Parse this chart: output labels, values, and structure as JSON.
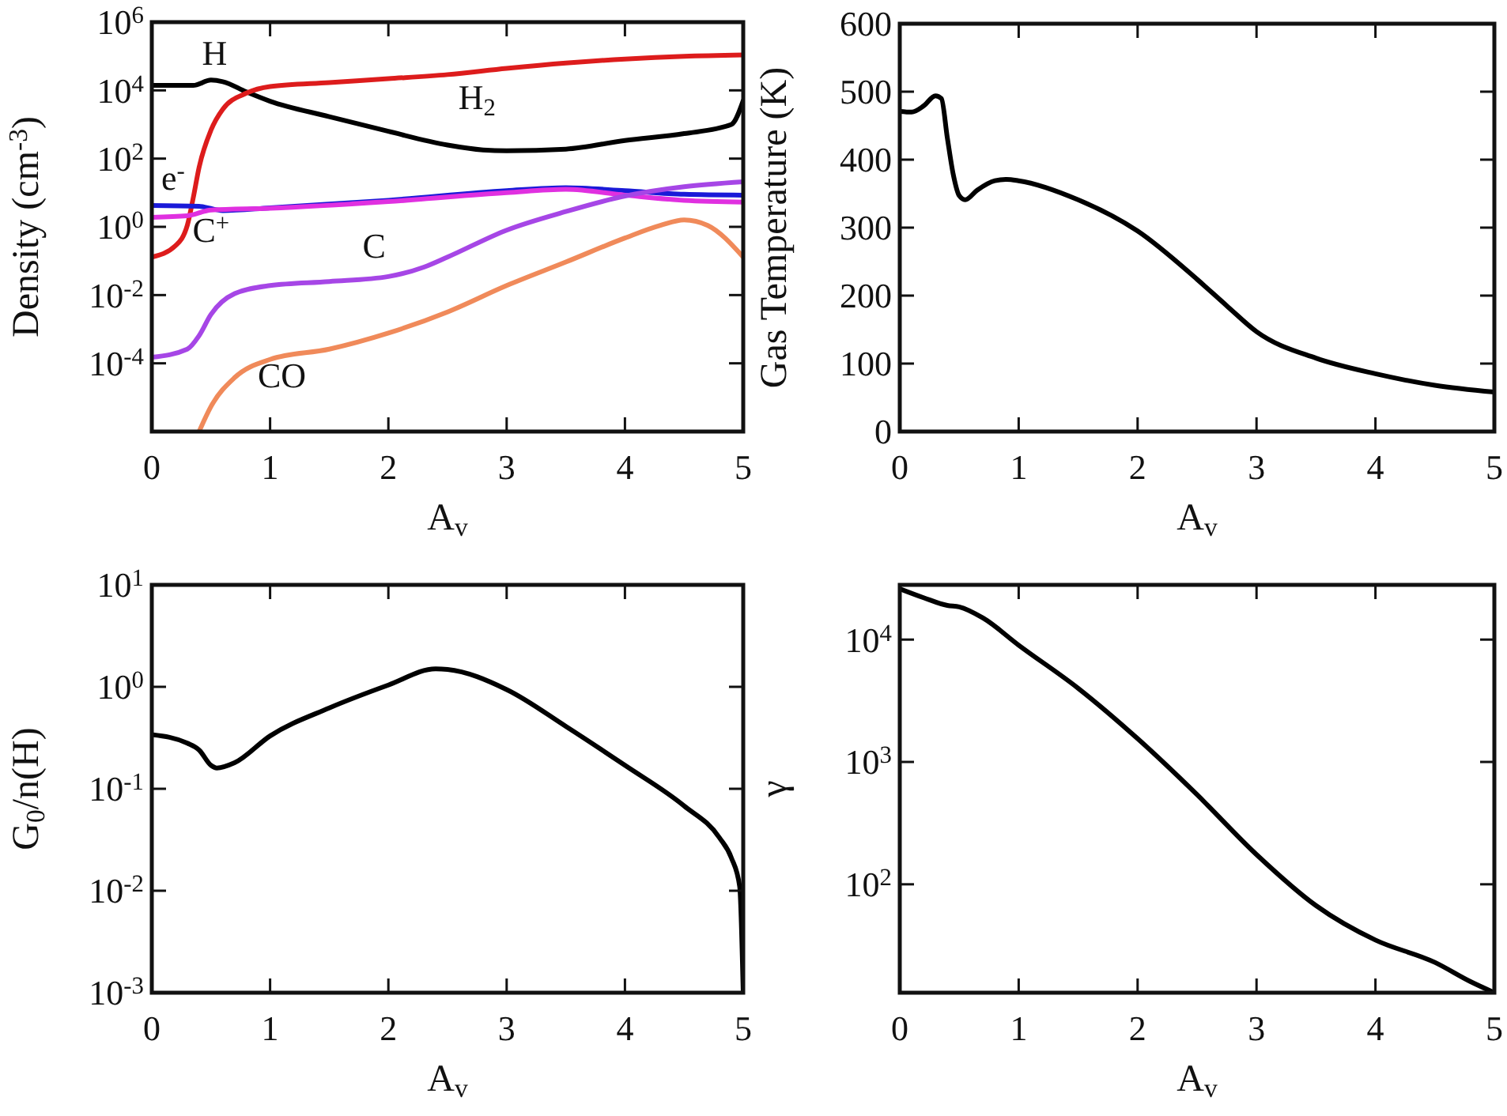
{
  "chart_data": [
    {
      "type": "line",
      "xlabel": "A$_{v}$",
      "ylabel": "Density (cm$^{-3}$)",
      "log": true,
      "xlim": [
        0,
        5
      ],
      "ylim": [
        1e-06,
        1000000.0
      ],
      "xticks": [
        0,
        1,
        2,
        3,
        4,
        5
      ],
      "yticks": [
        {
          "value": 0.0001,
          "label": "10$^{-4}$"
        },
        {
          "value": 0.01,
          "label": "10$^{-2}$"
        },
        {
          "value": 1,
          "label": "10$^{0}$"
        },
        {
          "value": 100,
          "label": "10$^{2}$"
        },
        {
          "value": 10000,
          "label": "10$^{4}$"
        },
        {
          "value": 1000000.0,
          "label": "10$^{6}$"
        }
      ],
      "series": [
        {
          "name": "H",
          "color": "#000000",
          "x": [
            0,
            0.35,
            0.5,
            0.6,
            0.8,
            1,
            1.5,
            2,
            2.5,
            2.8,
            3,
            3.5,
            4,
            4.5,
            4.9,
            5
          ],
          "values": [
            14000,
            14000,
            20000,
            18000,
            9000,
            4800,
            1700,
            630,
            250,
            180,
            170,
            190,
            340,
            540,
            1000,
            5000
          ]
        },
        {
          "name": "H$_{2}$",
          "color": "#dd1c1c",
          "x": [
            0,
            0.2,
            0.3,
            0.35,
            0.4,
            0.5,
            0.6,
            0.8,
            1,
            1.5,
            2,
            2.5,
            3,
            3.5,
            4,
            4.5,
            5
          ],
          "values": [
            0.13,
            0.28,
            1.1,
            7,
            56,
            680,
            2800,
            8300,
            13000,
            17000,
            22000,
            29000,
            44000,
            63000,
            83000,
            100000,
            110000
          ]
        },
        {
          "name": "e$^{-}$",
          "color": "#1a1ad8",
          "x": [
            0,
            0.4,
            0.6,
            1,
            2,
            3,
            3.5,
            4,
            4.5,
            5
          ],
          "values": [
            4.2,
            4,
            3,
            3.6,
            6,
            11.5,
            14,
            11.5,
            9,
            8.5
          ]
        },
        {
          "name": "C$^{+}$",
          "color": "#e030e0",
          "x": [
            0,
            0.3,
            0.5,
            1,
            2,
            3,
            3.5,
            4,
            4.5,
            5
          ],
          "values": [
            1.9,
            2.1,
            3.1,
            3.5,
            5.5,
            10,
            12.6,
            8.5,
            6,
            5.3
          ]
        },
        {
          "name": "C",
          "color": "#a646e6",
          "x": [
            0,
            0.3,
            0.4,
            0.5,
            0.7,
            1,
            1.5,
            2,
            2.3,
            2.5,
            3,
            3.5,
            4,
            4.5,
            5
          ],
          "values": [
            0.00015,
            0.00026,
            0.00065,
            0.0027,
            0.011,
            0.019,
            0.025,
            0.035,
            0.066,
            0.13,
            0.8,
            2.8,
            8,
            15,
            21
          ]
        },
        {
          "name": "CO",
          "color": "#f08a5a",
          "x": [
            0.4,
            0.5,
            0.7,
            1,
            1.5,
            2,
            2.5,
            3,
            3.5,
            4,
            4.3,
            4.5,
            4.7,
            5
          ],
          "values": [
            1e-06,
            5.4e-06,
            3.8e-05,
            0.00013,
            0.00026,
            0.00077,
            0.0032,
            0.019,
            0.093,
            0.47,
            1.1,
            1.6,
            1.1,
            0.13
          ]
        }
      ]
    },
    {
      "type": "line",
      "xlabel": "A$_{v}$",
      "ylabel": "Gas Temperature (K)",
      "xlim": [
        0,
        5
      ],
      "ylim": [
        0,
        600
      ],
      "xticks": [
        0,
        1,
        2,
        3,
        4,
        5
      ],
      "yticks": [
        0,
        100,
        200,
        300,
        400,
        500,
        600
      ],
      "series": [
        {
          "color": "#000000",
          "x": [
            0,
            0.1,
            0.2,
            0.3,
            0.35,
            0.4,
            0.45,
            0.5,
            0.55,
            0.65,
            0.8,
            0.9,
            1,
            1.5,
            2,
            2.5,
            2.75,
            3,
            3.5,
            4,
            4.5,
            5
          ],
          "values": [
            471,
            470,
            479,
            494,
            490,
            432,
            378,
            347,
            341,
            355,
            369,
            371,
            369,
            341,
            295,
            224,
            185,
            147,
            108,
            85,
            68,
            58
          ]
        }
      ]
    },
    {
      "type": "line",
      "xlabel": "A$_{v}$",
      "ylabel": "G$_{0}$/n(H)",
      "log": true,
      "xlim": [
        0,
        5
      ],
      "ylim": [
        0.001,
        10
      ],
      "xticks": [
        0,
        1,
        2,
        3,
        4,
        5
      ],
      "yticks": [
        {
          "value": 0.001,
          "label": "10$^{-3}$"
        },
        {
          "value": 0.01,
          "label": "10$^{-2}$"
        },
        {
          "value": 0.1,
          "label": "10$^{-1}$"
        },
        {
          "value": 1,
          "label": "10$^{0}$"
        },
        {
          "value": 10,
          "label": "10$^{1}$"
        }
      ],
      "series": [
        {
          "color": "#000000",
          "x": [
            0,
            0.3,
            0.4,
            0.5,
            0.55,
            0.7,
            1,
            1.5,
            2,
            2.4,
            2.5,
            3,
            3.5,
            4,
            4.5,
            4.8,
            4.9,
            4.97,
            5
          ],
          "values": [
            0.34,
            0.28,
            0.24,
            0.17,
            0.16,
            0.18,
            0.33,
            0.62,
            1.04,
            1.5,
            1.48,
            0.94,
            0.41,
            0.17,
            0.068,
            0.033,
            0.021,
            0.011,
            0.001
          ]
        }
      ]
    },
    {
      "type": "line",
      "xlabel": "A$_{v}$",
      "ylabel": "γ",
      "log": true,
      "xlim": [
        0,
        5
      ],
      "ylim": [
        13,
        28000
      ],
      "xticks": [
        0,
        1,
        2,
        3,
        4,
        5
      ],
      "yticks": [
        {
          "value": 100,
          "label": "10$^{2}$"
        },
        {
          "value": 1000,
          "label": "10$^{3}$"
        },
        {
          "value": 10000,
          "label": "10$^{4}$"
        }
      ],
      "series": [
        {
          "color": "#000000",
          "x": [
            0,
            0.2,
            0.4,
            0.5,
            0.7,
            1,
            1.5,
            2,
            2.5,
            3,
            3.5,
            4,
            4.5,
            4.8,
            5
          ],
          "values": [
            26000,
            22000,
            19000,
            18500,
            15000,
            9000,
            4000,
            1550,
            540,
            175,
            67,
            35,
            23,
            16,
            13
          ]
        }
      ]
    }
  ]
}
